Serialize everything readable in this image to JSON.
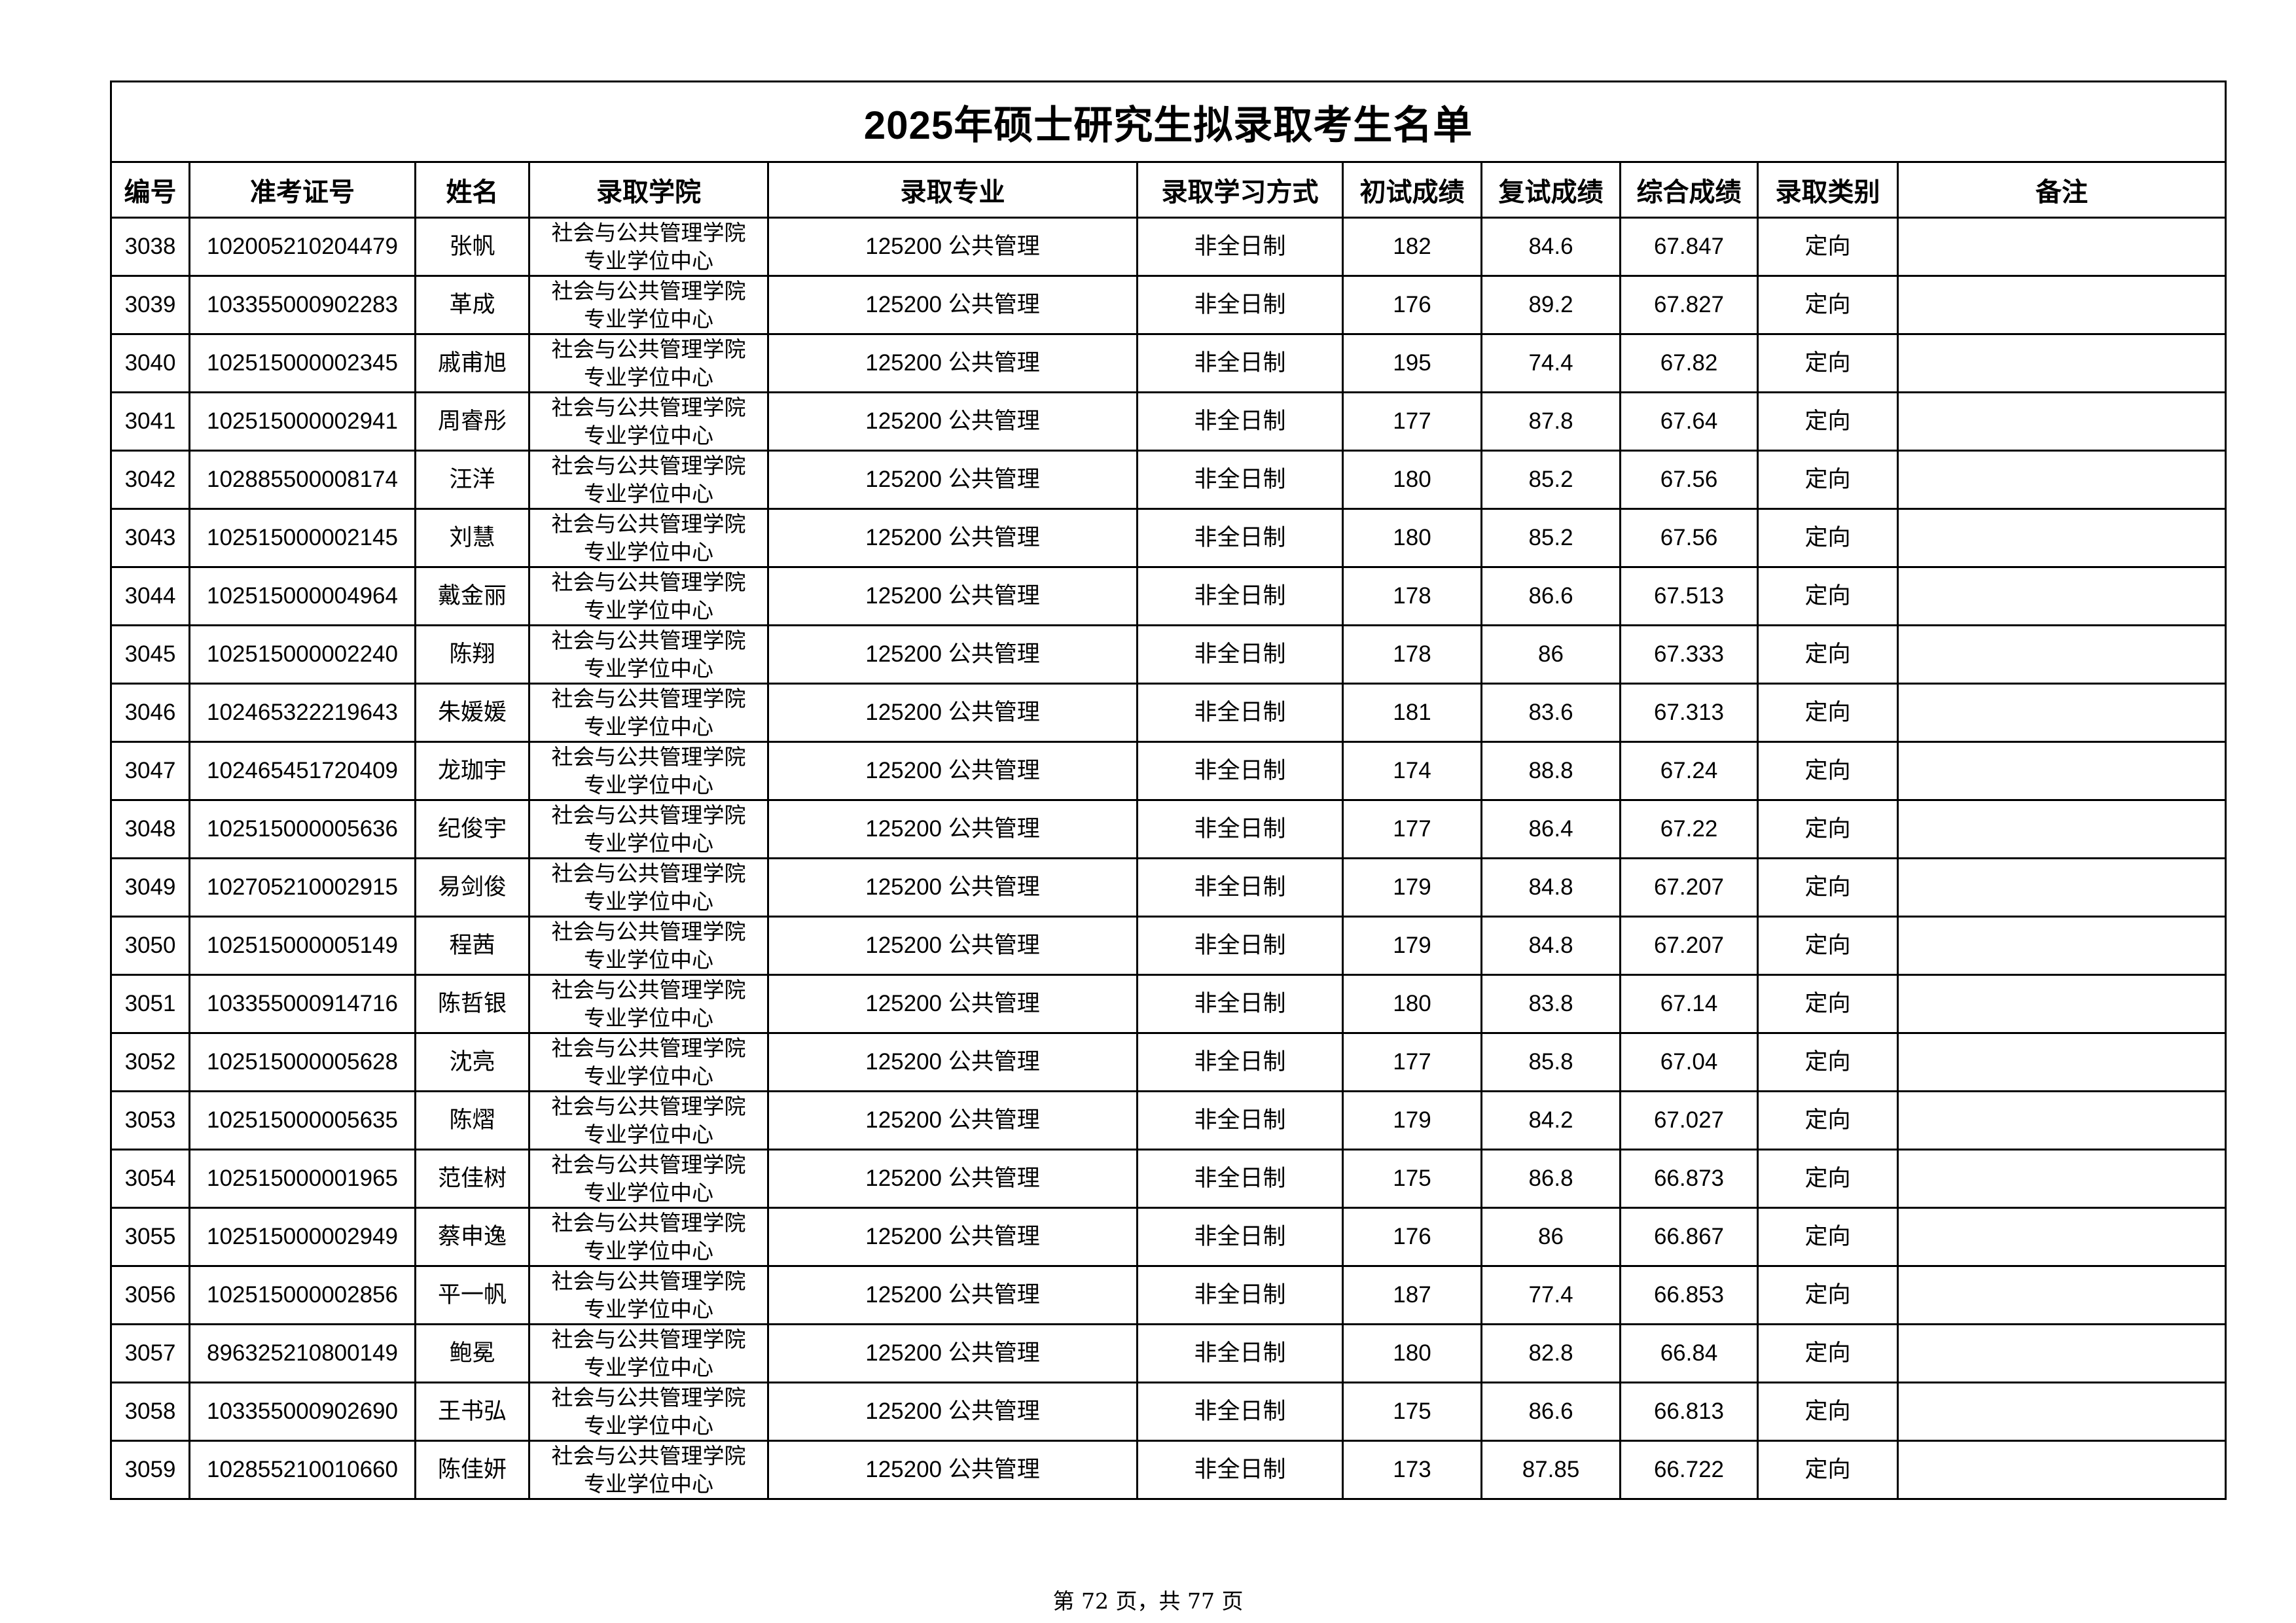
{
  "title": "2025年硕士研究生拟录取考生名单",
  "columns": [
    "编号",
    "准考证号",
    "姓名",
    "录取学院",
    "录取专业",
    "录取学习方式",
    "初试成绩",
    "复试成绩",
    "综合成绩",
    "录取类别",
    "备注"
  ],
  "rows": [
    [
      "3038",
      "102005210204479",
      "张帆",
      [
        "社会与公共管理学院",
        "专业学位中心"
      ],
      "125200 公共管理",
      "非全日制",
      "182",
      "84.6",
      "67.847",
      "定向",
      ""
    ],
    [
      "3039",
      "103355000902283",
      "革成",
      [
        "社会与公共管理学院",
        "专业学位中心"
      ],
      "125200 公共管理",
      "非全日制",
      "176",
      "89.2",
      "67.827",
      "定向",
      ""
    ],
    [
      "3040",
      "102515000002345",
      "戚甫旭",
      [
        "社会与公共管理学院",
        "专业学位中心"
      ],
      "125200 公共管理",
      "非全日制",
      "195",
      "74.4",
      "67.82",
      "定向",
      ""
    ],
    [
      "3041",
      "102515000002941",
      "周睿彤",
      [
        "社会与公共管理学院",
        "专业学位中心"
      ],
      "125200 公共管理",
      "非全日制",
      "177",
      "87.8",
      "67.64",
      "定向",
      ""
    ],
    [
      "3042",
      "102885500008174",
      "汪洋",
      [
        "社会与公共管理学院",
        "专业学位中心"
      ],
      "125200 公共管理",
      "非全日制",
      "180",
      "85.2",
      "67.56",
      "定向",
      ""
    ],
    [
      "3043",
      "102515000002145",
      "刘慧",
      [
        "社会与公共管理学院",
        "专业学位中心"
      ],
      "125200 公共管理",
      "非全日制",
      "180",
      "85.2",
      "67.56",
      "定向",
      ""
    ],
    [
      "3044",
      "102515000004964",
      "戴金丽",
      [
        "社会与公共管理学院",
        "专业学位中心"
      ],
      "125200 公共管理",
      "非全日制",
      "178",
      "86.6",
      "67.513",
      "定向",
      ""
    ],
    [
      "3045",
      "102515000002240",
      "陈翔",
      [
        "社会与公共管理学院",
        "专业学位中心"
      ],
      "125200 公共管理",
      "非全日制",
      "178",
      "86",
      "67.333",
      "定向",
      ""
    ],
    [
      "3046",
      "102465322219643",
      "朱媛媛",
      [
        "社会与公共管理学院",
        "专业学位中心"
      ],
      "125200 公共管理",
      "非全日制",
      "181",
      "83.6",
      "67.313",
      "定向",
      ""
    ],
    [
      "3047",
      "102465451720409",
      "龙珈宇",
      [
        "社会与公共管理学院",
        "专业学位中心"
      ],
      "125200 公共管理",
      "非全日制",
      "174",
      "88.8",
      "67.24",
      "定向",
      ""
    ],
    [
      "3048",
      "102515000005636",
      "纪俊宇",
      [
        "社会与公共管理学院",
        "专业学位中心"
      ],
      "125200 公共管理",
      "非全日制",
      "177",
      "86.4",
      "67.22",
      "定向",
      ""
    ],
    [
      "3049",
      "102705210002915",
      "易剑俊",
      [
        "社会与公共管理学院",
        "专业学位中心"
      ],
      "125200 公共管理",
      "非全日制",
      "179",
      "84.8",
      "67.207",
      "定向",
      ""
    ],
    [
      "3050",
      "102515000005149",
      "程茜",
      [
        "社会与公共管理学院",
        "专业学位中心"
      ],
      "125200 公共管理",
      "非全日制",
      "179",
      "84.8",
      "67.207",
      "定向",
      ""
    ],
    [
      "3051",
      "103355000914716",
      "陈哲银",
      [
        "社会与公共管理学院",
        "专业学位中心"
      ],
      "125200 公共管理",
      "非全日制",
      "180",
      "83.8",
      "67.14",
      "定向",
      ""
    ],
    [
      "3052",
      "102515000005628",
      "沈亮",
      [
        "社会与公共管理学院",
        "专业学位中心"
      ],
      "125200 公共管理",
      "非全日制",
      "177",
      "85.8",
      "67.04",
      "定向",
      ""
    ],
    [
      "3053",
      "102515000005635",
      "陈熠",
      [
        "社会与公共管理学院",
        "专业学位中心"
      ],
      "125200 公共管理",
      "非全日制",
      "179",
      "84.2",
      "67.027",
      "定向",
      ""
    ],
    [
      "3054",
      "102515000001965",
      "范佳树",
      [
        "社会与公共管理学院",
        "专业学位中心"
      ],
      "125200 公共管理",
      "非全日制",
      "175",
      "86.8",
      "66.873",
      "定向",
      ""
    ],
    [
      "3055",
      "102515000002949",
      "蔡申逸",
      [
        "社会与公共管理学院",
        "专业学位中心"
      ],
      "125200 公共管理",
      "非全日制",
      "176",
      "86",
      "66.867",
      "定向",
      ""
    ],
    [
      "3056",
      "102515000002856",
      "平一帆",
      [
        "社会与公共管理学院",
        "专业学位中心"
      ],
      "125200 公共管理",
      "非全日制",
      "187",
      "77.4",
      "66.853",
      "定向",
      ""
    ],
    [
      "3057",
      "896325210800149",
      "鲍冕",
      [
        "社会与公共管理学院",
        "专业学位中心"
      ],
      "125200 公共管理",
      "非全日制",
      "180",
      "82.8",
      "66.84",
      "定向",
      ""
    ],
    [
      "3058",
      "103355000902690",
      "王书弘",
      [
        "社会与公共管理学院",
        "专业学位中心"
      ],
      "125200 公共管理",
      "非全日制",
      "175",
      "86.6",
      "66.813",
      "定向",
      ""
    ],
    [
      "3059",
      "102855210010660",
      "陈佳妍",
      [
        "社会与公共管理学院",
        "专业学位中心"
      ],
      "125200 公共管理",
      "非全日制",
      "173",
      "87.85",
      "66.722",
      "定向",
      ""
    ]
  ],
  "footer": "第 72 页，共 77 页"
}
